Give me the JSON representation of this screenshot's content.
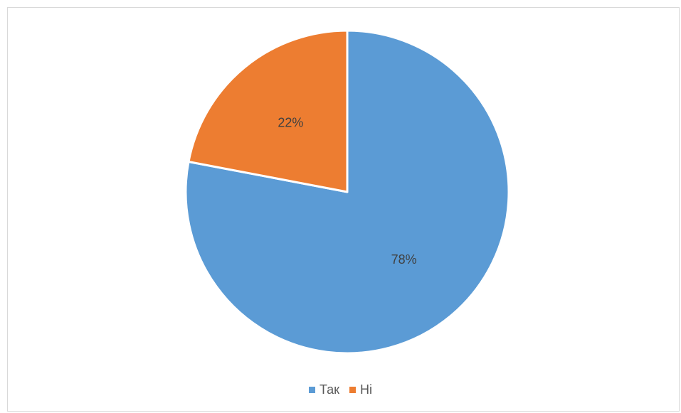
{
  "chart_data": {
    "type": "pie",
    "categories": [
      "Так",
      "Ні"
    ],
    "values": [
      78,
      22
    ],
    "data_labels": [
      "78%",
      "22%"
    ],
    "colors": [
      "#5b9bd5",
      "#ed7d31"
    ],
    "start_angle_deg": 0,
    "direction": "clockwise",
    "legend_position": "bottom",
    "title": ""
  }
}
